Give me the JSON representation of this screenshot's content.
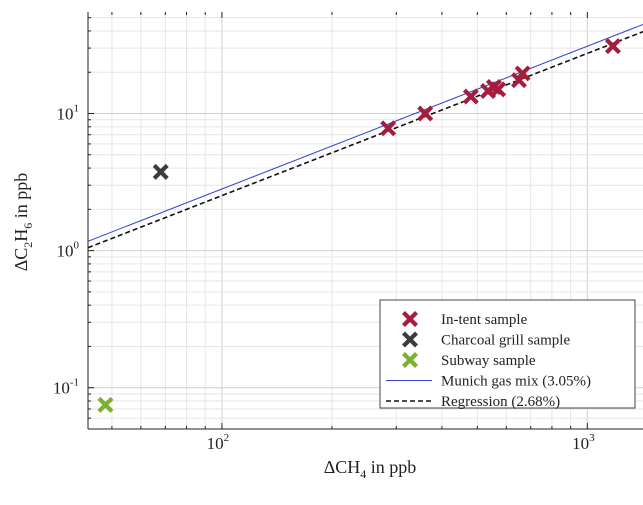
{
  "chart_data": {
    "type": "scatter",
    "x_scale": "log",
    "y_scale": "log",
    "xlim": [
      43,
      1420
    ],
    "ylim": [
      0.05,
      55
    ],
    "grid": true,
    "xlabel": {
      "prefix": "ΔCH",
      "sub": "4",
      "suffix": " in ppb"
    },
    "ylabel": {
      "prefix": "ΔC",
      "sub1": "2",
      "mid": "H",
      "sub2": "6",
      "suffix": " in ppb"
    },
    "x_ticks": [
      {
        "value": 100,
        "base": "10",
        "exp": "2"
      },
      {
        "value": 1000,
        "base": "10",
        "exp": "3"
      }
    ],
    "y_ticks": [
      {
        "value": 0.1,
        "base": "10",
        "exp": "-1"
      },
      {
        "value": 1,
        "base": "10",
        "exp": "0"
      },
      {
        "value": 10,
        "base": "10",
        "exp": "1"
      }
    ],
    "series": [
      {
        "name": "In-tent sample",
        "kind": "scatter",
        "marker": "x",
        "color": "#a51c3c",
        "points": [
          {
            "x": 285,
            "y": 7.8
          },
          {
            "x": 360,
            "y": 10.0
          },
          {
            "x": 480,
            "y": 13.3
          },
          {
            "x": 535,
            "y": 14.6
          },
          {
            "x": 555,
            "y": 15.6
          },
          {
            "x": 570,
            "y": 15.0
          },
          {
            "x": 650,
            "y": 17.5
          },
          {
            "x": 665,
            "y": 19.6
          },
          {
            "x": 1175,
            "y": 31.0
          }
        ]
      },
      {
        "name": "Charcoal grill sample",
        "kind": "scatter",
        "marker": "x",
        "color": "#3c3c3c",
        "points": [
          {
            "x": 68,
            "y": 3.75
          }
        ]
      },
      {
        "name": "Subway sample",
        "kind": "scatter",
        "marker": "x",
        "color": "#7cb030",
        "points": [
          {
            "x": 48,
            "y": 0.075
          }
        ]
      },
      {
        "name": "Munich gas mix (3.05%)",
        "kind": "line",
        "style": "solid",
        "color": "#3344cc",
        "points": [
          {
            "x": 43,
            "y": 1.17
          },
          {
            "x": 1420,
            "y": 44.6
          }
        ]
      },
      {
        "name": "Regression (2.68%)",
        "kind": "line",
        "style": "dashed",
        "color": "#111111",
        "points": [
          {
            "x": 43,
            "y": 1.05
          },
          {
            "x": 1420,
            "y": 39.5
          }
        ]
      }
    ]
  }
}
